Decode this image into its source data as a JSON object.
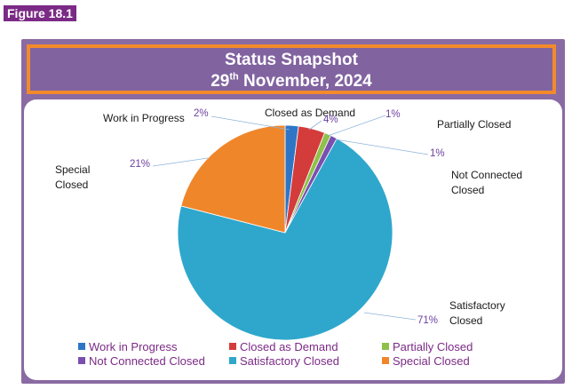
{
  "figure_label": "Figure 18.1",
  "chart_data": {
    "type": "pie",
    "title": "Status Snapshot",
    "subtitle": {
      "day": "29",
      "suffix": "th",
      "rest": "November, 2024"
    },
    "slices": [
      {
        "name": "Work in Progress",
        "label_lines": [
          "Work in Progress"
        ],
        "value": 2,
        "value_label": "2%",
        "color": "#2e75c6"
      },
      {
        "name": "Closed as Demand",
        "label_lines": [
          "Closed as Demand"
        ],
        "value": 4,
        "value_label": "4%",
        "color": "#d43c3c"
      },
      {
        "name": "Partially Closed",
        "label_lines": [
          "Partially Closed"
        ],
        "value": 1,
        "value_label": "1%",
        "color": "#8fc14a"
      },
      {
        "name": "Not Connected Closed",
        "label_lines": [
          "Not Connected",
          "Closed"
        ],
        "value": 1,
        "value_label": "1%",
        "color": "#7a4fb0"
      },
      {
        "name": "Satisfactory Closed",
        "label_lines": [
          "Satisfactory",
          "Closed"
        ],
        "value": 71,
        "value_label": "71%",
        "color": "#2fa7cc"
      },
      {
        "name": "Special Closed",
        "label_lines": [
          "Special",
          "Closed"
        ],
        "value": 21,
        "value_label": "21%",
        "color": "#f0862a"
      }
    ],
    "legend": {
      "placement": "bottom",
      "entries": [
        "Work in Progress",
        "Closed as Demand",
        "Partially Closed",
        "Not Connected Closed",
        "Satisfactory Closed",
        "Special Closed"
      ]
    }
  }
}
